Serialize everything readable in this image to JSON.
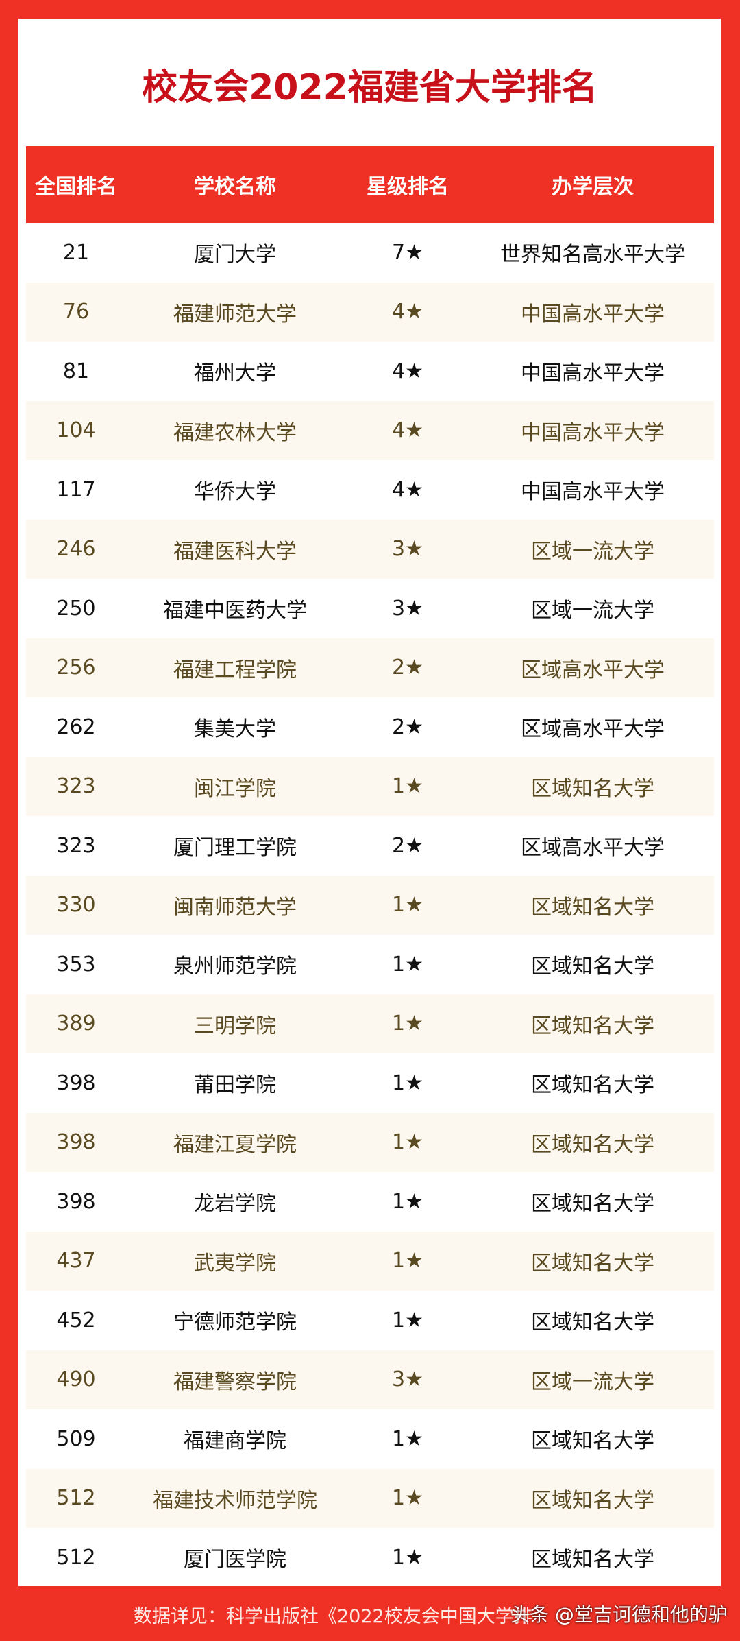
{
  "header": {
    "title": "校友会2022福建省大学排名"
  },
  "table": {
    "columns": [
      "全国排名",
      "学校名称",
      "星级排名",
      "办学层次"
    ],
    "rows": [
      [
        "21",
        "厦门大学",
        "7★",
        "世界知名高水平大学"
      ],
      [
        "76",
        "福建师范大学",
        "4★",
        "中国高水平大学"
      ],
      [
        "81",
        "福州大学",
        "4★",
        "中国高水平大学"
      ],
      [
        "104",
        "福建农林大学",
        "4★",
        "中国高水平大学"
      ],
      [
        "117",
        "华侨大学",
        "4★",
        "中国高水平大学"
      ],
      [
        "246",
        "福建医科大学",
        "3★",
        "区域一流大学"
      ],
      [
        "250",
        "福建中医药大学",
        "3★",
        "区域一流大学"
      ],
      [
        "256",
        "福建工程学院",
        "2★",
        "区域高水平大学"
      ],
      [
        "262",
        "集美大学",
        "2★",
        "区域高水平大学"
      ],
      [
        "323",
        "闽江学院",
        "1★",
        "区域知名大学"
      ],
      [
        "323",
        "厦门理工学院",
        "2★",
        "区域高水平大学"
      ],
      [
        "330",
        "闽南师范大学",
        "1★",
        "区域知名大学"
      ],
      [
        "353",
        "泉州师范学院",
        "1★",
        "区域知名大学"
      ],
      [
        "389",
        "三明学院",
        "1★",
        "区域知名大学"
      ],
      [
        "398",
        "莆田学院",
        "1★",
        "区域知名大学"
      ],
      [
        "398",
        "福建江夏学院",
        "1★",
        "区域知名大学"
      ],
      [
        "398",
        "龙岩学院",
        "1★",
        "区域知名大学"
      ],
      [
        "437",
        "武夷学院",
        "1★",
        "区域知名大学"
      ],
      [
        "452",
        "宁德师范学院",
        "1★",
        "区域知名大学"
      ],
      [
        "490",
        "福建警察学院",
        "3★",
        "区域一流大学"
      ],
      [
        "509",
        "福建商学院",
        "1★",
        "区域知名大学"
      ],
      [
        "512",
        "福建技术师范学院",
        "1★",
        "区域知名大学"
      ],
      [
        "512",
        "厦门医学院",
        "1★",
        "区域知名大学"
      ]
    ]
  },
  "footer": {
    "source": "数据详见：科学出版社《2022校友会中国大学排",
    "watermark": "头条 @堂吉诃德和他的驴"
  }
}
